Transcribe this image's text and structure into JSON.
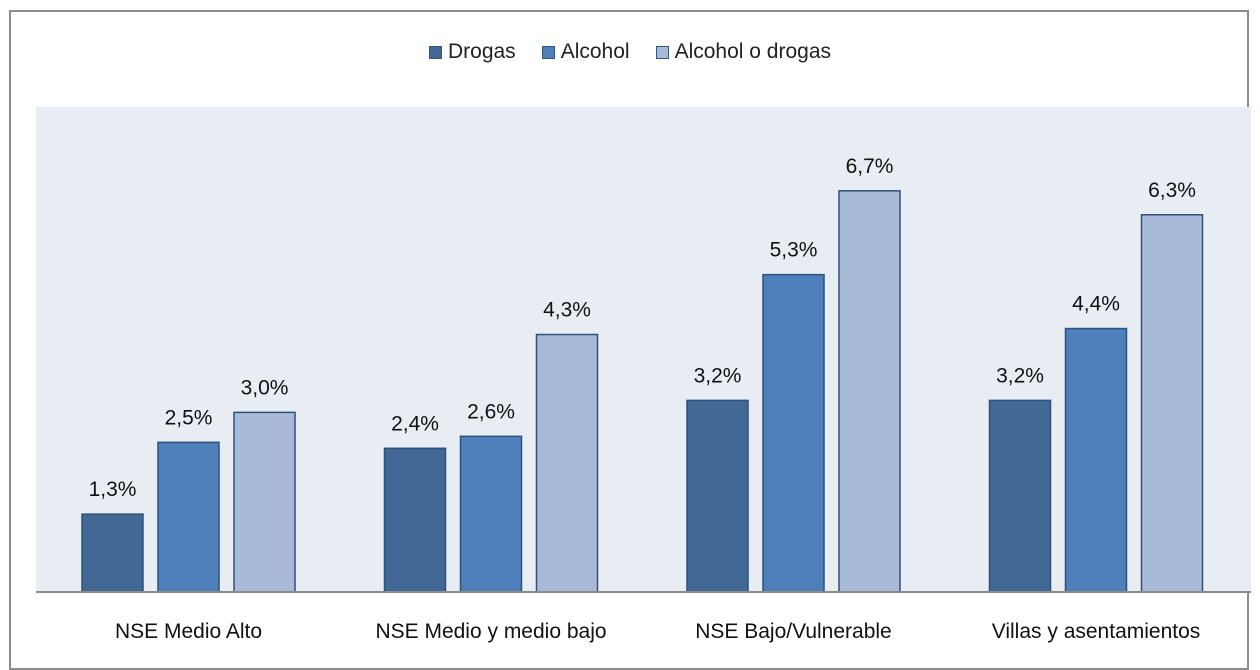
{
  "chart_data": {
    "type": "bar",
    "categories": [
      "NSE Medio Alto",
      "NSE Medio y medio bajo",
      "NSE Bajo/Vulnerable",
      "Villas y asentamientos"
    ],
    "series": [
      {
        "name": "Drogas",
        "color": "#426896",
        "values": [
          1.3,
          2.4,
          3.2,
          3.2
        ],
        "labels": [
          "1,3%",
          "2,4%",
          "3,2%",
          "3,2%"
        ]
      },
      {
        "name": "Alcohol",
        "color": "#4d80bb",
        "values": [
          2.5,
          2.6,
          5.3,
          4.4
        ],
        "labels": [
          "2,5%",
          "2,6%",
          "5,3%",
          "4,4%"
        ]
      },
      {
        "name": "Alcohol o drogas",
        "color": "#a8bad8",
        "values": [
          3.0,
          4.3,
          6.7,
          6.3
        ],
        "labels": [
          "3,0%",
          "4,3%",
          "6,7%",
          "6,3%"
        ]
      }
    ],
    "legend_position": "top",
    "plot_background": "#e8edf3",
    "ylim": [
      0,
      8.1
    ],
    "grid": false
  }
}
